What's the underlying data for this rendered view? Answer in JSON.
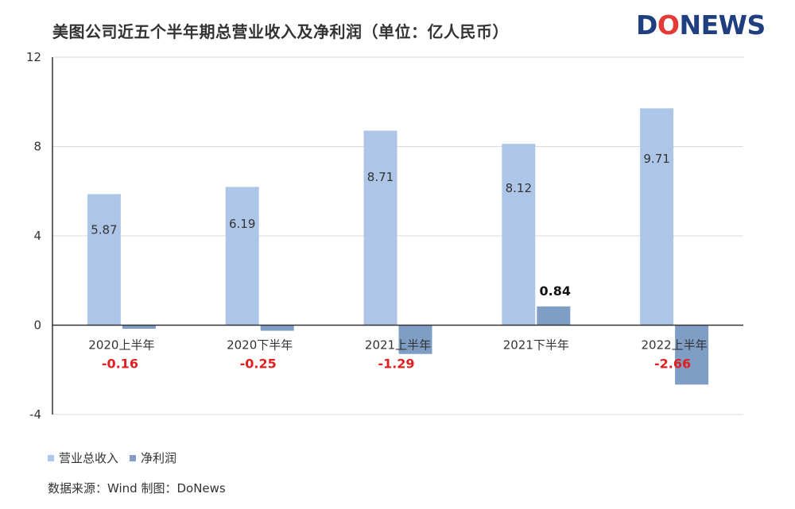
{
  "title": "美图公司近五个半年期总营业收入及净利润（单位：亿人民币）",
  "logo": {
    "text_dark_1": "D",
    "text_red": "O",
    "text_dark_2": "NEWS"
  },
  "source": "数据来源：Wind   制图：DoNews",
  "colors": {
    "revenue": "#adc6e8",
    "profit": "#7f9ec6",
    "negative_label": "#e02020",
    "positive_label": "#111111",
    "axis": "#333333",
    "grid": "#d9d9d9"
  },
  "chart_data": {
    "type": "bar",
    "categories": [
      "2020上半年",
      "2020下半年",
      "2021上半年",
      "2021下半年",
      "2022上半年"
    ],
    "series": [
      {
        "name": "营业总收入",
        "values": [
          5.87,
          6.19,
          8.71,
          8.12,
          9.71
        ],
        "labels": [
          "5.87",
          "6.19",
          "8.71",
          "8.12",
          "9.71"
        ]
      },
      {
        "name": "净利润",
        "values": [
          -0.16,
          -0.25,
          -1.29,
          0.84,
          -2.66
        ],
        "labels": [
          "-0.16",
          "-0.25",
          "-1.29",
          "0.84",
          "-2.66"
        ]
      }
    ],
    "yticks": [
      "12",
      "8",
      "4",
      "0",
      "-4"
    ],
    "ylim": [
      -4,
      12
    ],
    "grid": true,
    "legend": "bottom-left"
  }
}
